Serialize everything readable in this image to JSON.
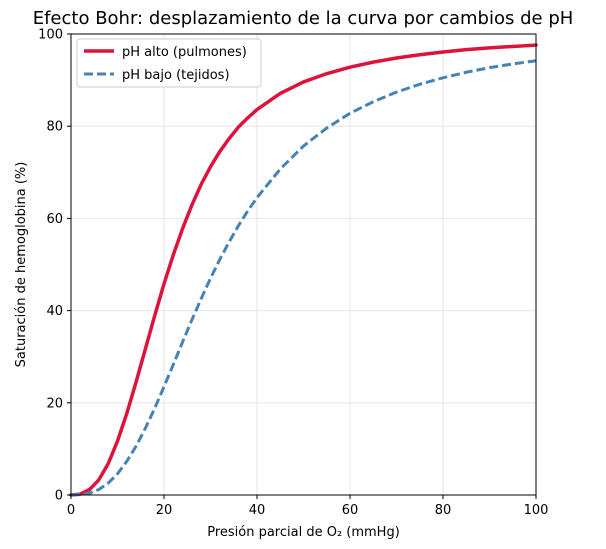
{
  "chart_data": {
    "type": "line",
    "title": "Efecto Bohr: desplazamiento de la curva por cambios de pH",
    "xlabel": "Presión parcial de O₂ (mmHg)",
    "ylabel": "Saturación de hemoglobina (%)",
    "xlim": [
      0,
      100
    ],
    "ylim": [
      0,
      100
    ],
    "xticks": [
      "0",
      "20",
      "40",
      "60",
      "80",
      "100"
    ],
    "yticks": [
      "0",
      "20",
      "40",
      "60",
      "80",
      "100"
    ],
    "grid": true,
    "legend_position": "top-left",
    "series": [
      {
        "name": "pH alto (pulmones)",
        "color": "#dc143c",
        "style": "solid",
        "x": [
          0,
          2,
          4,
          6,
          8,
          10,
          12,
          14,
          16,
          18,
          20,
          22,
          24,
          26,
          28,
          30,
          32,
          34,
          36,
          38,
          40,
          45,
          50,
          55,
          60,
          65,
          70,
          75,
          80,
          85,
          90,
          95,
          100
        ],
        "y": [
          0,
          0.2,
          1.2,
          3.3,
          6.8,
          11.7,
          17.7,
          24.5,
          31.7,
          38.9,
          45.8,
          52.1,
          57.8,
          62.9,
          67.4,
          71.2,
          74.5,
          77.3,
          79.8,
          81.8,
          83.6,
          87.1,
          89.6,
          91.4,
          92.8,
          93.9,
          94.8,
          95.5,
          96.1,
          96.6,
          97.0,
          97.3,
          97.6
        ]
      },
      {
        "name": "pH bajo (tejidos)",
        "color": "#4682b4",
        "style": "dashed",
        "x": [
          0,
          2,
          4,
          6,
          8,
          10,
          12,
          14,
          16,
          18,
          20,
          22,
          24,
          26,
          28,
          30,
          32,
          34,
          36,
          38,
          40,
          45,
          50,
          55,
          60,
          65,
          70,
          75,
          80,
          85,
          90,
          95,
          100
        ],
        "y": [
          0,
          0.1,
          0.4,
          1.2,
          2.6,
          4.6,
          7.3,
          10.6,
          14.5,
          18.8,
          23.5,
          28.3,
          33.2,
          38.0,
          42.6,
          47.0,
          51.1,
          54.9,
          58.4,
          61.6,
          64.5,
          70.7,
          75.7,
          79.6,
          82.8,
          85.3,
          87.4,
          89.1,
          90.5,
          91.7,
          92.7,
          93.5,
          94.2
        ]
      }
    ]
  }
}
